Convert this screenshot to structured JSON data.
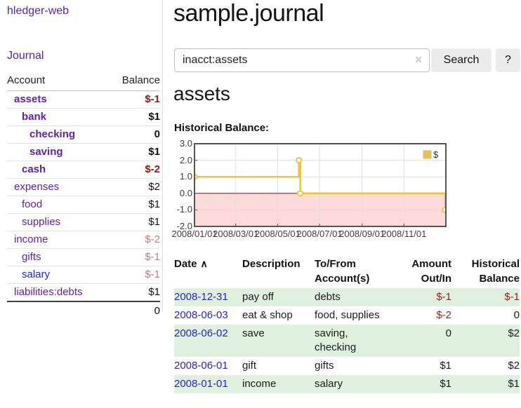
{
  "theme": {
    "purple": "#5c22a8",
    "blue": "#2323dd",
    "neg_strong": "#8f1a1a",
    "neg_soft": "#c07c7c",
    "neg_table": "#9b1c1c",
    "row_green": "#dff0df",
    "gold": "#edc240",
    "pink": "#fcdada",
    "zero_red": "#aa0000",
    "chart_border": "#545454",
    "grid_line": "#e0e0e0",
    "button_bg": "#ececec"
  },
  "sidebar": {
    "brand": "hledger-web",
    "journal_label": "Journal",
    "header": {
      "account": "Account",
      "balance": "Balance"
    },
    "accounts": [
      {
        "name": "assets",
        "depth": 0,
        "bold": true,
        "balance": "$-1",
        "balance_tone": "neg-strong"
      },
      {
        "name": "bank",
        "depth": 1,
        "bold": true,
        "balance": "$1",
        "balance_tone": "normal"
      },
      {
        "name": "checking",
        "depth": 2,
        "bold": true,
        "balance": "0",
        "balance_tone": "normal"
      },
      {
        "name": "saving",
        "depth": 2,
        "bold": true,
        "balance": "$1",
        "balance_tone": "normal"
      },
      {
        "name": "cash",
        "depth": 1,
        "bold": true,
        "balance": "$-2",
        "balance_tone": "neg-strong"
      },
      {
        "name": "expenses",
        "depth": 0,
        "bold": false,
        "balance": "$2",
        "balance_tone": "normal"
      },
      {
        "name": "food",
        "depth": 1,
        "bold": false,
        "balance": "$1",
        "balance_tone": "normal"
      },
      {
        "name": "supplies",
        "depth": 1,
        "bold": false,
        "balance": "$1",
        "balance_tone": "normal"
      },
      {
        "name": "income",
        "depth": 0,
        "bold": false,
        "balance": "$-2",
        "balance_tone": "neg-soft"
      },
      {
        "name": "gifts",
        "depth": 1,
        "bold": false,
        "balance": "$-1",
        "balance_tone": "neg-soft"
      },
      {
        "name": "salary",
        "depth": 1,
        "bold": false,
        "balance": "$-1",
        "balance_tone": "neg-soft",
        "link_tone": "blue"
      },
      {
        "name": "liabilities:debts",
        "depth": 0,
        "bold": false,
        "balance": "$1",
        "balance_tone": "normal"
      }
    ],
    "total": "0"
  },
  "header": {
    "title": "sample.journal"
  },
  "search": {
    "value": "inacct:assets",
    "clear_icon": "✕",
    "button_label": "Search",
    "help_label": "?"
  },
  "main": {
    "account_heading": "assets"
  },
  "chart_data": {
    "type": "line",
    "title": "Historical Balance:",
    "step": true,
    "legend": [
      {
        "label": "$",
        "color": "#edc240"
      }
    ],
    "y_ticks": [
      "3.0",
      "2.0",
      "1.0",
      "0.0",
      "-1.0",
      "-2.0"
    ],
    "ylim": [
      -2,
      3
    ],
    "x_ticks": [
      {
        "label": "2008/01/01",
        "day": 0
      },
      {
        "label": "2008/03/01",
        "day": 60
      },
      {
        "label": "2008/05/01",
        "day": 121
      },
      {
        "label": "2008/07/01",
        "day": 182
      },
      {
        "label": "2008/09/01",
        "day": 244
      },
      {
        "label": "2008/11/01",
        "day": 305
      }
    ],
    "x_range_days": 366,
    "grid": true,
    "legend_position": "top-right",
    "negative_region_shaded": true,
    "series": [
      {
        "name": "$",
        "points": [
          {
            "date": "2008-01-01",
            "day": 0,
            "value": 1
          },
          {
            "date": "2008-06-01",
            "day": 152,
            "value": 2
          },
          {
            "date": "2008-06-03",
            "day": 154,
            "value": 0
          },
          {
            "date": "2008-12-31",
            "day": 365,
            "value": -1
          }
        ]
      }
    ]
  },
  "register": {
    "header": {
      "date": "Date",
      "description": "Description",
      "accounts": "To/From\nAccount(s)",
      "amount": "Amount\nOut/In",
      "balance": "Historical\nBalance"
    },
    "sort_icon": "∧",
    "rows": [
      {
        "date": "2008-12-31",
        "description": "pay off",
        "accounts": "debts",
        "amount": "$-1",
        "amount_negative": true,
        "balance": "$-1",
        "balance_negative": true
      },
      {
        "date": "2008-06-03",
        "description": "eat & shop",
        "accounts": "food, supplies",
        "amount": "$-2",
        "amount_negative": true,
        "balance": "0",
        "balance_negative": false
      },
      {
        "date": "2008-06-02",
        "description": "save",
        "accounts": "saving, checking",
        "amount": "0",
        "amount_negative": false,
        "balance": "$2",
        "balance_negative": false
      },
      {
        "date": "2008-06-01",
        "description": "gift",
        "accounts": "gifts",
        "amount": "$1",
        "amount_negative": false,
        "balance": "$2",
        "balance_negative": false
      },
      {
        "date": "2008-01-01",
        "description": "income",
        "accounts": "salary",
        "amount": "$1",
        "amount_negative": false,
        "balance": "$1",
        "balance_negative": false
      }
    ]
  }
}
